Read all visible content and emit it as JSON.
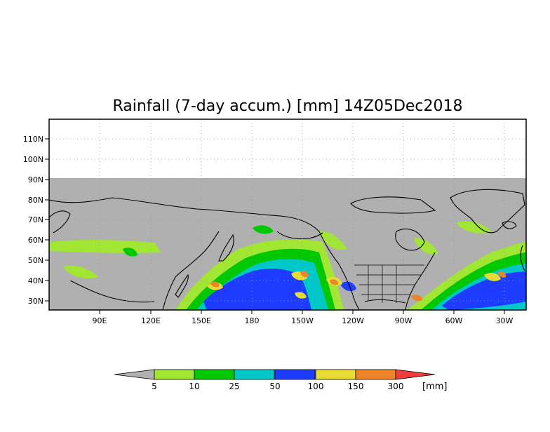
{
  "title": "Rainfall (7-day accum.) [mm] 14Z05Dec2018",
  "map": {
    "lat_labels": [
      "110N",
      "100N",
      "90N",
      "80N",
      "70N",
      "60N",
      "50N",
      "40N",
      "30N"
    ],
    "lon_labels": [
      "90E",
      "120E",
      "150E",
      "180",
      "150W",
      "120W",
      "90W",
      "60W",
      "30W"
    ],
    "no_data_color": "#b0b0b0",
    "gridlines": "dotted"
  },
  "colorbar": {
    "unit": "[mm]",
    "tick_labels": [
      "5",
      "10",
      "25",
      "50",
      "100",
      "150",
      "300"
    ],
    "colors": [
      "#a0e632",
      "#00c800",
      "#00c8c8",
      "#1e3cff",
      "#e6dc32",
      "#f08228",
      "#f03c3c"
    ],
    "under_color": "#b0b0b0"
  }
}
